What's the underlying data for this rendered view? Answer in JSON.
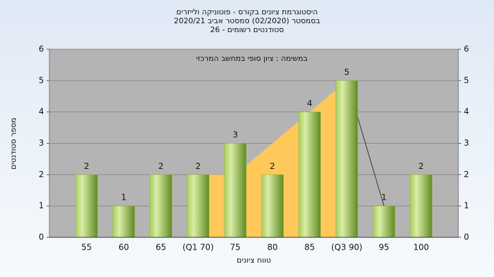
{
  "chart_data": {
    "type": "bar",
    "title": "היסטוגרמת ציונים בקורס - פוטוניקה ולייזרים",
    "subtitle": "בסמסטר  (02/2020)  סמסטר אביב 2020/21",
    "subtitle2": "סטודנטים רשומים - 26",
    "annotation": "במשימה : ציון סופי במחשב המרכזי",
    "x_label": "טווח ציונים",
    "y_label": "מספר סטודנטים",
    "categories": [
      "55",
      "60",
      "65",
      "(Q1 70)",
      "75",
      "80",
      "85",
      "(Q3 90)",
      "95",
      "100"
    ],
    "values": [
      2,
      1,
      2,
      2,
      3,
      2,
      4,
      5,
      1,
      2
    ],
    "color": "#8fb83c",
    "area": {
      "values": [
        null,
        null,
        null,
        2,
        2,
        3,
        4,
        5,
        null,
        null
      ],
      "color": "#ffc85a"
    },
    "line": {
      "values": [
        null,
        null,
        null,
        null,
        null,
        null,
        null,
        5,
        1,
        null
      ],
      "color": "#333333"
    },
    "ylim": [
      0,
      6
    ],
    "yticks": [
      0,
      1,
      2,
      3,
      4,
      5,
      6
    ],
    "grid": true
  }
}
